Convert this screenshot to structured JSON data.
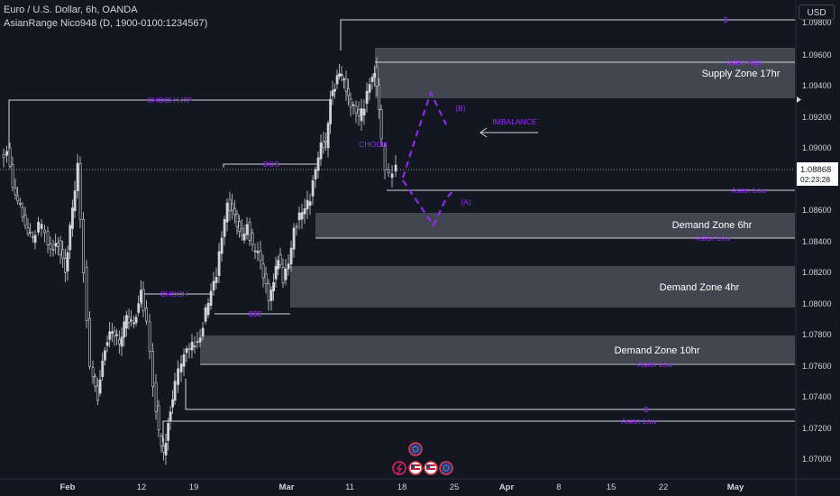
{
  "header": {
    "title": "Euro / U.S. Dollar, 6h, OANDA",
    "indicator": "AsianRange Nico948 (D, 1900-0100:1234567)"
  },
  "currency_button": "USD",
  "price_axis": {
    "ticks": [
      "1.09800",
      "1.09600",
      "1.09400",
      "1.09200",
      "1.09000",
      "1.08600",
      "1.08400",
      "1.08200",
      "1.08000",
      "1.07800",
      "1.07600",
      "1.07400",
      "1.07200",
      "1.07000"
    ],
    "current_price": "1.08868",
    "countdown": "02:23:28"
  },
  "time_axis": {
    "ticks": [
      "Feb",
      "12",
      "19",
      "Mar",
      "11",
      "18",
      "25",
      "Apr",
      "8",
      "15",
      "22",
      "May"
    ]
  },
  "annotations": {
    "choch_htf": "CHOCH HTF",
    "bos": "BOS",
    "choch_left": "CHOCH",
    "sss": "$$$",
    "choch_right": "CHOCH",
    "dollar_top": "$",
    "asian_high": "Asian High",
    "imbalance": "IMBALANCE",
    "label_b": "(B)",
    "label_a": "(A)",
    "asian_low_1": "Asian Low",
    "asian_low_2": "Asian Low",
    "asian_low_3": "Asian Low",
    "dollar_bottom": "$",
    "asian_low_4": "Asian Low"
  },
  "zones": {
    "supply_17hr": "Supply Zone 17hr",
    "demand_6hr": "Demand Zone 6hr",
    "demand_4hr": "Demand Zone 4hr",
    "demand_10hr": "Demand Zone 10hr"
  },
  "colors": {
    "background": "#131722",
    "candle": "#d1d4dc",
    "annotation": "#9c27ff",
    "zone_fill": "#6a6d78",
    "text": "#d1d4dc"
  },
  "icons": [
    "lightning-icon",
    "us-flag-icon",
    "us-flag-icon",
    "settings-event-icon",
    "eu-event-icon"
  ]
}
